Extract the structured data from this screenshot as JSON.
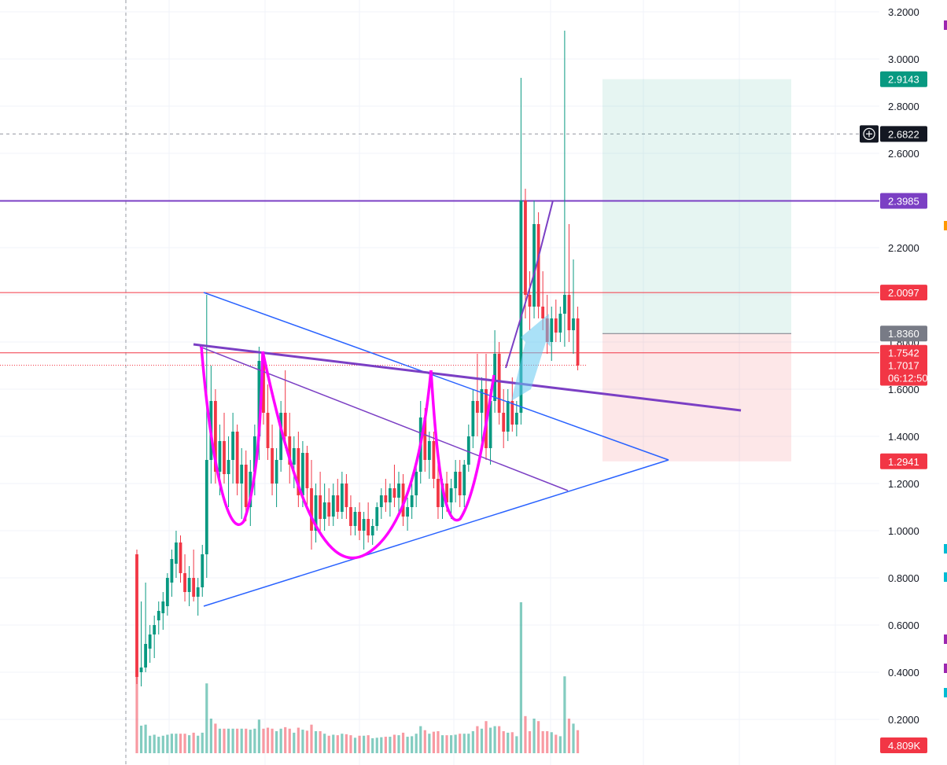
{
  "chart_data": {
    "type": "candlestick",
    "price_axis": {
      "ticks": [
        "3.2000",
        "3.0000",
        "2.8000",
        "2.6000",
        "2.4000",
        "2.2000",
        "2.0000",
        "1.8000",
        "1.6000",
        "1.4000",
        "1.2000",
        "1.0000",
        "0.8000",
        "0.6000",
        "0.4000",
        "0.2000"
      ],
      "ylim": [
        0.0,
        3.25
      ]
    },
    "badges": [
      {
        "label": "2.9143",
        "color": "#089981",
        "value": 2.9143
      },
      {
        "label": "2.6822",
        "color": "#131722",
        "value": 2.6822
      },
      {
        "label": "2.3985",
        "color": "#7b3fc4",
        "value": 2.3985
      },
      {
        "label": "2.0097",
        "color": "#f23645",
        "value": 2.0097
      },
      {
        "label": "1.8360",
        "color": "#787b86",
        "value": 1.836
      },
      {
        "label": "1.7542",
        "color": "#f23645",
        "value": 1.7542
      },
      {
        "label": "1.7017",
        "color": "#f23645",
        "value": 1.7017
      },
      {
        "label": "1.2941",
        "color": "#f23645",
        "value": 1.2941
      },
      {
        "label": "4.809K",
        "color": "#f23645"
      }
    ],
    "countdown": "06:12:50",
    "crosshair_price": 2.6822,
    "horizontal_levels": [
      {
        "value": 2.3985,
        "color": "#7b3fc4"
      },
      {
        "value": 2.0097,
        "color": "#f23645"
      },
      {
        "value": 1.7542,
        "color": "#f23645"
      }
    ],
    "position_tool": {
      "target": 2.9143,
      "entry": 1.836,
      "stop": 1.2941
    },
    "colors": {
      "up": "#089981",
      "down": "#f23645",
      "trend": "#2962ff",
      "pattern": "#ff00ff",
      "channel": "#7b3fc4"
    },
    "candles": [
      [
        0.9,
        0.92,
        0.35,
        0.38
      ],
      [
        0.4,
        0.7,
        0.34,
        0.42
      ],
      [
        0.42,
        0.78,
        0.4,
        0.52
      ],
      [
        0.5,
        0.6,
        0.44,
        0.56
      ],
      [
        0.56,
        0.64,
        0.46,
        0.6
      ],
      [
        0.62,
        0.7,
        0.56,
        0.66
      ],
      [
        0.65,
        0.74,
        0.58,
        0.7
      ],
      [
        0.68,
        0.82,
        0.64,
        0.8
      ],
      [
        0.78,
        0.92,
        0.72,
        0.88
      ],
      [
        0.86,
        1.0,
        0.8,
        0.95
      ],
      [
        0.95,
        0.98,
        0.78,
        0.82
      ],
      [
        0.82,
        0.9,
        0.7,
        0.74
      ],
      [
        0.74,
        0.85,
        0.68,
        0.8
      ],
      [
        0.8,
        0.92,
        0.7,
        0.72
      ],
      [
        0.72,
        0.8,
        0.64,
        0.76
      ],
      [
        0.76,
        0.94,
        0.72,
        0.9
      ],
      [
        0.9,
        2.0,
        0.8,
        1.3
      ],
      [
        1.3,
        1.7,
        1.2,
        1.55
      ],
      [
        1.55,
        1.6,
        1.2,
        1.25
      ],
      [
        1.25,
        1.45,
        1.15,
        1.38
      ],
      [
        1.38,
        1.5,
        1.2,
        1.24
      ],
      [
        1.24,
        1.4,
        1.1,
        1.3
      ],
      [
        1.3,
        1.5,
        1.2,
        1.42
      ],
      [
        1.42,
        1.45,
        1.15,
        1.2
      ],
      [
        1.2,
        1.35,
        1.05,
        1.28
      ],
      [
        1.28,
        1.34,
        1.04,
        1.1
      ],
      [
        1.1,
        1.3,
        1.02,
        1.25
      ],
      [
        1.25,
        1.45,
        1.15,
        1.4
      ],
      [
        1.4,
        1.78,
        1.3,
        1.72
      ],
      [
        1.72,
        1.75,
        1.45,
        1.5
      ],
      [
        1.5,
        1.62,
        1.3,
        1.35
      ],
      [
        1.35,
        1.45,
        1.15,
        1.2
      ],
      [
        1.2,
        1.35,
        1.1,
        1.3
      ],
      [
        1.3,
        1.55,
        1.25,
        1.5
      ],
      [
        1.5,
        1.68,
        1.35,
        1.4
      ],
      [
        1.4,
        1.5,
        1.2,
        1.28
      ],
      [
        1.28,
        1.4,
        1.18,
        1.35
      ],
      [
        1.35,
        1.42,
        1.1,
        1.15
      ],
      [
        1.15,
        1.38,
        1.1,
        1.33
      ],
      [
        1.33,
        1.36,
        1.1,
        1.18
      ],
      [
        1.18,
        1.3,
        0.92,
        1.0
      ],
      [
        1.0,
        1.2,
        0.95,
        1.15
      ],
      [
        1.15,
        1.25,
        1.0,
        1.05
      ],
      [
        1.05,
        1.2,
        1.0,
        1.12
      ],
      [
        1.12,
        1.18,
        1.02,
        1.06
      ],
      [
        1.06,
        1.2,
        1.02,
        1.15
      ],
      [
        1.15,
        1.22,
        1.05,
        1.08
      ],
      [
        1.08,
        1.25,
        1.05,
        1.2
      ],
      [
        1.2,
        1.24,
        1.05,
        1.1
      ],
      [
        1.1,
        1.15,
        0.98,
        1.02
      ],
      [
        1.02,
        1.1,
        0.98,
        1.08
      ],
      [
        1.08,
        1.12,
        0.96,
        1.0
      ],
      [
        1.0,
        1.08,
        0.92,
        1.05
      ],
      [
        1.05,
        1.12,
        0.95,
        0.98
      ],
      [
        0.98,
        1.05,
        0.94,
        1.02
      ],
      [
        1.02,
        1.12,
        1.0,
        1.1
      ],
      [
        1.1,
        1.18,
        1.05,
        1.15
      ],
      [
        1.15,
        1.22,
        1.08,
        1.12
      ],
      [
        1.12,
        1.2,
        1.06,
        1.18
      ],
      [
        1.18,
        1.28,
        1.1,
        1.14
      ],
      [
        1.14,
        1.25,
        1.08,
        1.2
      ],
      [
        1.2,
        1.24,
        1.02,
        1.06
      ],
      [
        1.06,
        1.14,
        1.0,
        1.1
      ],
      [
        1.1,
        1.2,
        1.05,
        1.15
      ],
      [
        1.15,
        1.3,
        1.1,
        1.25
      ],
      [
        1.25,
        1.55,
        1.2,
        1.48
      ],
      [
        1.48,
        1.52,
        1.25,
        1.3
      ],
      [
        1.3,
        1.42,
        1.22,
        1.38
      ],
      [
        1.38,
        1.42,
        1.18,
        1.22
      ],
      [
        1.22,
        1.3,
        1.05,
        1.1
      ],
      [
        1.1,
        1.22,
        1.05,
        1.2
      ],
      [
        1.2,
        1.25,
        1.08,
        1.12
      ],
      [
        1.12,
        1.22,
        1.05,
        1.18
      ],
      [
        1.18,
        1.3,
        1.12,
        1.25
      ],
      [
        1.25,
        1.3,
        1.1,
        1.15
      ],
      [
        1.15,
        1.3,
        1.1,
        1.28
      ],
      [
        1.28,
        1.45,
        1.25,
        1.4
      ],
      [
        1.4,
        1.6,
        1.35,
        1.55
      ],
      [
        1.55,
        1.75,
        1.4,
        1.5
      ],
      [
        1.5,
        1.65,
        1.35,
        1.6
      ],
      [
        1.6,
        1.75,
        1.3,
        1.35
      ],
      [
        1.35,
        1.6,
        1.28,
        1.55
      ],
      [
        1.55,
        1.85,
        1.5,
        1.75
      ],
      [
        1.75,
        1.8,
        1.45,
        1.5
      ],
      [
        1.5,
        1.6,
        1.35,
        1.42
      ],
      [
        1.42,
        1.6,
        1.38,
        1.55
      ],
      [
        1.55,
        1.65,
        1.42,
        1.45
      ],
      [
        1.45,
        1.55,
        1.4,
        1.5
      ],
      [
        1.5,
        2.92,
        1.45,
        2.4
      ],
      [
        2.4,
        2.45,
        1.9,
        2.0
      ],
      [
        2.0,
        2.1,
        1.85,
        1.95
      ],
      [
        1.95,
        2.4,
        1.9,
        2.3
      ],
      [
        2.3,
        2.35,
        1.9,
        1.95
      ],
      [
        1.95,
        2.1,
        1.85,
        1.9
      ],
      [
        1.9,
        2.0,
        1.75,
        1.8
      ],
      [
        1.8,
        1.95,
        1.72,
        1.9
      ],
      [
        1.9,
        1.98,
        1.8,
        1.84
      ],
      [
        1.84,
        1.95,
        1.8,
        1.92
      ],
      [
        1.92,
        3.12,
        1.78,
        2.0
      ],
      [
        2.0,
        2.3,
        1.8,
        1.85
      ],
      [
        1.85,
        2.15,
        1.75,
        1.9
      ],
      [
        1.9,
        1.95,
        1.68,
        1.7
      ]
    ],
    "volume_ylim": [
      0,
      10
    ]
  }
}
